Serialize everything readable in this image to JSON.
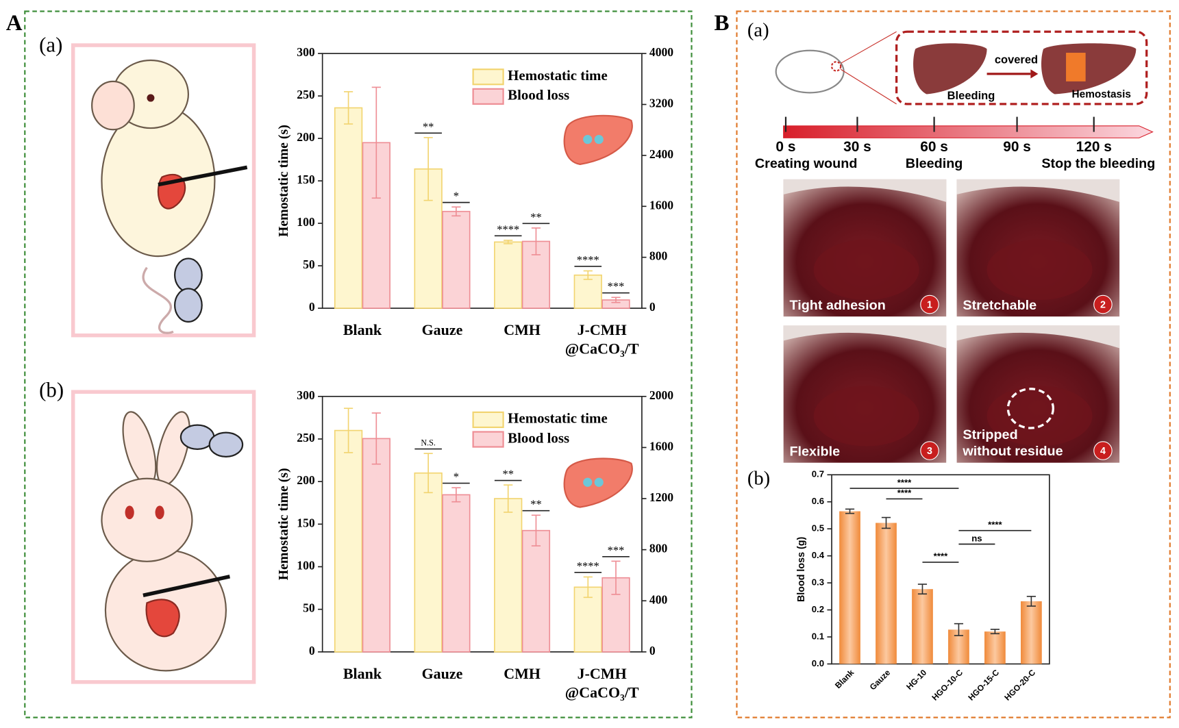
{
  "labels": {
    "panel_A": "A",
    "panel_B": "B",
    "A_a": "(a)",
    "A_b": "(b)",
    "B_a": "(a)",
    "B_b": "(b)"
  },
  "diagram": {
    "covered": "covered",
    "before": "Bleeding",
    "after": "Hemostasis"
  },
  "timeline": {
    "ticks": [
      "0 s",
      "30 s",
      "60 s",
      "90 s",
      "120 s"
    ],
    "stages": [
      "Creating wound",
      "Bleeding",
      "Stop the bleeding"
    ]
  },
  "photos": [
    {
      "caption": "Tight adhesion",
      "badge": "1"
    },
    {
      "caption": "Stretchable",
      "badge": "2"
    },
    {
      "caption": "Flexible",
      "badge": "3"
    },
    {
      "caption": "Stripped without residue",
      "badge": "4"
    }
  ],
  "chart_data": [
    {
      "type": "bar",
      "ylabel": "Hemostatic time (s)",
      "categories": [
        "Blank",
        "Gauze",
        "CMH",
        "J-CMH @CaCO₃/T"
      ],
      "ylim": [
        0,
        300
      ],
      "yticks": [
        0,
        50,
        100,
        150,
        200,
        250,
        300
      ],
      "y2lim": [
        0,
        4000
      ],
      "y2ticks": [
        0,
        800,
        1600,
        2400,
        3200,
        4000
      ],
      "legend": "upper right",
      "series": [
        {
          "name": "Hemostatic time",
          "color": "#fef6cf",
          "edge": "#f2d470",
          "values": [
            236,
            164,
            78,
            39
          ],
          "errors": [
            19,
            37,
            2,
            5
          ],
          "significance": [
            null,
            "**",
            "****",
            "****"
          ]
        },
        {
          "name": "Blood loss",
          "axis": "y2",
          "color": "#fbd3d6",
          "edge": "#ee8e95",
          "values": [
            2600,
            1520,
            1050,
            130
          ],
          "errors": [
            870,
            70,
            210,
            40
          ],
          "significance": [
            null,
            "*",
            "**",
            "***"
          ]
        }
      ]
    },
    {
      "type": "bar",
      "ylabel": "Hemostatic time (s)",
      "categories": [
        "Blank",
        "Gauze",
        "CMH",
        "J-CMH @CaCO₃/T"
      ],
      "ylim": [
        0,
        300
      ],
      "yticks": [
        0,
        50,
        100,
        150,
        200,
        250,
        300
      ],
      "y2lim": [
        0,
        2000
      ],
      "y2ticks": [
        0,
        400,
        800,
        1200,
        1600,
        2000
      ],
      "legend": "upper right",
      "series": [
        {
          "name": "Hemostatic time",
          "color": "#fef6cf",
          "edge": "#f2d470",
          "values": [
            260,
            210,
            180,
            76
          ],
          "errors": [
            26,
            23,
            16,
            12
          ],
          "significance": [
            null,
            "N.S.",
            "**",
            "****"
          ]
        },
        {
          "name": "Blood loss",
          "axis": "y2",
          "color": "#fbd3d6",
          "edge": "#ee8e95",
          "values": [
            1670,
            1230,
            950,
            580
          ],
          "errors": [
            200,
            55,
            120,
            130
          ],
          "significance": [
            null,
            "*",
            "**",
            "***"
          ]
        }
      ]
    },
    {
      "type": "bar",
      "ylabel": "Blood loss (g)",
      "categories": [
        "Blank",
        "Gauze",
        "HG-10",
        "HGO-10-C",
        "HGO-15-C",
        "HGO-20-C"
      ],
      "values": [
        0.565,
        0.522,
        0.277,
        0.127,
        0.12,
        0.232
      ],
      "errors": [
        0.008,
        0.02,
        0.018,
        0.022,
        0.008,
        0.018
      ],
      "color": "#f6a560",
      "ylim": [
        0,
        0.7
      ],
      "yticks": [
        {
          "value": 0,
          "label": "0.0"
        },
        0.1,
        0.2,
        0.3,
        0.4,
        0.5,
        0.6,
        0.7
      ],
      "comparisons": [
        {
          "between": [
            "Blank",
            "HGO-10-C"
          ],
          "label": "****"
        },
        {
          "between": [
            "Gauze",
            "HG-10"
          ],
          "label": "****"
        },
        {
          "between": [
            "HGO-10-C",
            "HGO-20-C"
          ],
          "label": "****"
        },
        {
          "between": [
            "HGO-10-C",
            "HGO-15-C"
          ],
          "label": "ns"
        },
        {
          "between": [
            "HG-10",
            "HGO-10-C"
          ],
          "label": "****"
        }
      ]
    }
  ]
}
